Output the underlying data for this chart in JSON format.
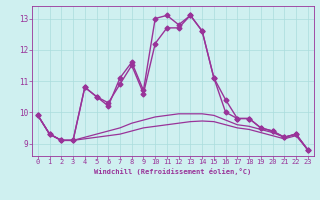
{
  "xlabel": "Windchill (Refroidissement éolien,°C)",
  "background_color": "#cff0f0",
  "line_color": "#993399",
  "grid_color": "#aadddd",
  "xlim": [
    -0.5,
    23.5
  ],
  "ylim": [
    8.6,
    13.4
  ],
  "xticks": [
    0,
    1,
    2,
    3,
    4,
    5,
    6,
    7,
    8,
    9,
    10,
    11,
    12,
    13,
    14,
    15,
    16,
    17,
    18,
    19,
    20,
    21,
    22,
    23
  ],
  "yticks": [
    9,
    10,
    11,
    12,
    13
  ],
  "series": [
    {
      "x": [
        0,
        1,
        2,
        3,
        4,
        5,
        6,
        7,
        8,
        9,
        10,
        11,
        12,
        13,
        14,
        15,
        16,
        17,
        18,
        19,
        20,
        21,
        22,
        23
      ],
      "y": [
        9.9,
        9.3,
        9.1,
        9.1,
        10.8,
        10.5,
        10.2,
        11.1,
        11.6,
        10.7,
        13.0,
        13.1,
        12.8,
        13.1,
        12.6,
        11.1,
        10.4,
        9.8,
        9.8,
        9.5,
        9.4,
        9.2,
        9.3,
        8.8
      ],
      "marker": "D",
      "markersize": 2.5,
      "linewidth": 1.0,
      "zorder": 3
    },
    {
      "x": [
        0,
        1,
        2,
        3,
        4,
        5,
        6,
        7,
        8,
        9,
        10,
        11,
        12,
        13,
        14,
        15,
        16,
        17,
        18,
        19,
        20,
        21,
        22,
        23
      ],
      "y": [
        9.9,
        9.3,
        9.1,
        9.1,
        10.8,
        10.5,
        10.3,
        10.9,
        11.5,
        10.6,
        12.2,
        12.7,
        12.7,
        13.1,
        12.6,
        11.1,
        10.0,
        9.8,
        9.8,
        9.5,
        9.4,
        9.2,
        9.3,
        8.8
      ],
      "marker": "D",
      "markersize": 2.5,
      "linewidth": 1.0,
      "zorder": 3
    },
    {
      "x": [
        0,
        1,
        2,
        3,
        4,
        5,
        6,
        7,
        8,
        9,
        10,
        11,
        12,
        13,
        14,
        15,
        16,
        17,
        18,
        19,
        20,
        21,
        22,
        23
      ],
      "y": [
        9.9,
        9.3,
        9.1,
        9.1,
        9.15,
        9.2,
        9.25,
        9.3,
        9.4,
        9.5,
        9.55,
        9.6,
        9.65,
        9.7,
        9.72,
        9.7,
        9.6,
        9.5,
        9.45,
        9.35,
        9.25,
        9.15,
        9.25,
        8.8
      ],
      "marker": null,
      "markersize": 0,
      "linewidth": 0.9,
      "zorder": 2
    },
    {
      "x": [
        0,
        1,
        2,
        3,
        4,
        5,
        6,
        7,
        8,
        9,
        10,
        11,
        12,
        13,
        14,
        15,
        16,
        17,
        18,
        19,
        20,
        21,
        22,
        23
      ],
      "y": [
        9.9,
        9.3,
        9.1,
        9.1,
        9.2,
        9.3,
        9.4,
        9.5,
        9.65,
        9.75,
        9.85,
        9.9,
        9.95,
        9.95,
        9.95,
        9.9,
        9.75,
        9.6,
        9.55,
        9.45,
        9.35,
        9.2,
        9.3,
        8.8
      ],
      "marker": null,
      "markersize": 0,
      "linewidth": 0.9,
      "zorder": 2
    }
  ]
}
